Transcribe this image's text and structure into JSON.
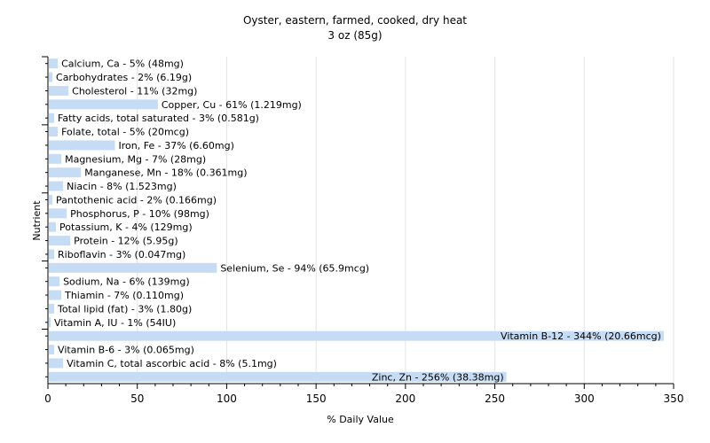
{
  "chart_data": {
    "type": "bar",
    "orientation": "horizontal",
    "title": "Oyster, eastern, farmed, cooked, dry heat",
    "subtitle": "3 oz (85g)",
    "xlabel": "% Daily Value",
    "ylabel": "Nutrient",
    "xlim": [
      0,
      350
    ],
    "xticks": [
      0,
      50,
      100,
      150,
      200,
      250,
      300,
      350
    ],
    "grid": true,
    "bar_color": "#c6dcf5",
    "categories": [
      "Calcium, Ca",
      "Carbohydrates",
      "Cholesterol",
      "Copper, Cu",
      "Fatty acids, total saturated",
      "Folate, total",
      "Iron, Fe",
      "Magnesium, Mg",
      "Manganese, Mn",
      "Niacin",
      "Pantothenic acid",
      "Phosphorus, P",
      "Potassium, K",
      "Protein",
      "Riboflavin",
      "Selenium, Se",
      "Sodium, Na",
      "Thiamin",
      "Total lipid (fat)",
      "Vitamin A, IU",
      "Vitamin B-12",
      "Vitamin B-6",
      "Vitamin C, total ascorbic acid",
      "Zinc, Zn"
    ],
    "values": [
      5,
      2,
      11,
      61,
      3,
      5,
      37,
      7,
      18,
      8,
      2,
      10,
      4,
      12,
      3,
      94,
      6,
      7,
      3,
      1,
      344,
      3,
      8,
      256
    ],
    "labels": [
      "Calcium, Ca - 5% (48mg)",
      "Carbohydrates - 2% (6.19g)",
      "Cholesterol - 11% (32mg)",
      "Copper, Cu - 61% (1.219mg)",
      "Fatty acids, total saturated - 3% (0.581g)",
      "Folate, total - 5% (20mcg)",
      "Iron, Fe - 37% (6.60mg)",
      "Magnesium, Mg - 7% (28mg)",
      "Manganese, Mn - 18% (0.361mg)",
      "Niacin - 8% (1.523mg)",
      "Pantothenic acid - 2% (0.166mg)",
      "Phosphorus, P - 10% (98mg)",
      "Potassium, K - 4% (129mg)",
      "Protein - 12% (5.95g)",
      "Riboflavin - 3% (0.047mg)",
      "Selenium, Se - 94% (65.9mcg)",
      "Sodium, Na - 6% (139mg)",
      "Thiamin - 7% (0.110mg)",
      "Total lipid (fat) - 3% (1.80g)",
      "Vitamin A, IU - 1% (54IU)",
      "Vitamin B-12 - 344% (20.66mcg)",
      "Vitamin B-6 - 3% (0.065mg)",
      "Vitamin C, total ascorbic acid - 8% (5.1mg)",
      "Zinc, Zn - 256% (38.38mg)"
    ]
  }
}
